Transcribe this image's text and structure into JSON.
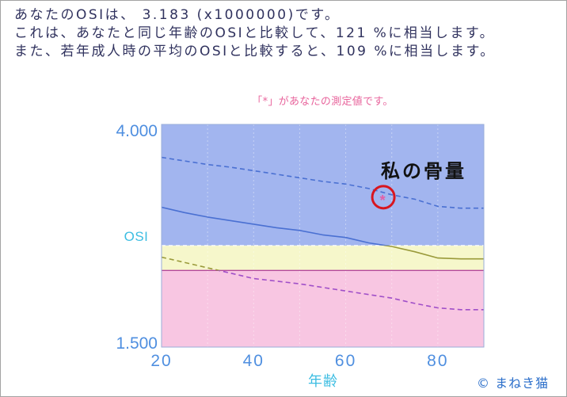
{
  "summary": {
    "line1": "あなたのOSIは、 3.183 (x1000000)です。",
    "line2": "これは、あなたと同じ年齢のOSIと比較して、121 %に相当します。",
    "line3": "また、若年成人時の平均のOSIと比較すると、109 %に相当します。"
  },
  "caption": "「*」があなたの測定値です。",
  "annotation": {
    "label": "私の骨量",
    "ring_color": "#d8161f"
  },
  "watermark": "© まねき猫",
  "colors": {
    "summary_text": "#30325e",
    "caption": "#e8649c",
    "annotation": "#111111",
    "watermark": "#2c6fca"
  },
  "chart_data": {
    "type": "line",
    "xlabel": "年齢",
    "ylabel": "OSI",
    "xlim": [
      20,
      90
    ],
    "ylim": [
      1.5,
      4.0
    ],
    "x_ticks": [
      20,
      40,
      60,
      80
    ],
    "y_ticks": [
      {
        "value": 4.0,
        "label": "4.000"
      },
      {
        "value": 1.5,
        "label": "1.500"
      }
    ],
    "grid": true,
    "x": [
      20,
      25,
      30,
      35,
      40,
      45,
      50,
      55,
      60,
      65,
      70,
      75,
      80,
      85,
      90
    ],
    "series": [
      {
        "style": "dashed",
        "y": [
          3.63,
          3.59,
          3.55,
          3.52,
          3.48,
          3.44,
          3.4,
          3.36,
          3.33,
          3.28,
          3.21,
          3.16,
          3.08,
          3.06,
          3.06
        ]
      },
      {
        "style": "solid",
        "y": [
          3.07,
          3.01,
          2.96,
          2.92,
          2.88,
          2.84,
          2.81,
          2.76,
          2.73,
          2.67,
          2.63,
          2.57,
          2.5,
          2.49,
          2.49
        ]
      },
      {
        "style": "dashed",
        "y": [
          2.51,
          2.45,
          2.39,
          2.33,
          2.27,
          2.24,
          2.21,
          2.17,
          2.13,
          2.09,
          2.05,
          1.99,
          1.94,
          1.92,
          1.92
        ]
      }
    ],
    "bands": [
      {
        "from": 2.64,
        "to": 4.0,
        "fill": "#a2b5ef",
        "line": "#4a70d2"
      },
      {
        "from": 2.36,
        "to": 2.64,
        "fill": "#f6f7cb",
        "line": "#9a9a3a",
        "edge": "#ffffff",
        "edge_style": "dashed"
      },
      {
        "from": 1.5,
        "to": 2.36,
        "fill": "#f8c6e2",
        "line": "#a04fc8",
        "edge": "#b4479c",
        "edge_style": "solid"
      }
    ],
    "marker": {
      "x": 68,
      "y": 3.183,
      "symbol": "*",
      "color": "#e45ea6"
    },
    "colors": {
      "tick": "#4f8fe0",
      "axis_label": "#3cbde2",
      "frame": "#9aaed8",
      "grid": "#ffffff"
    }
  }
}
